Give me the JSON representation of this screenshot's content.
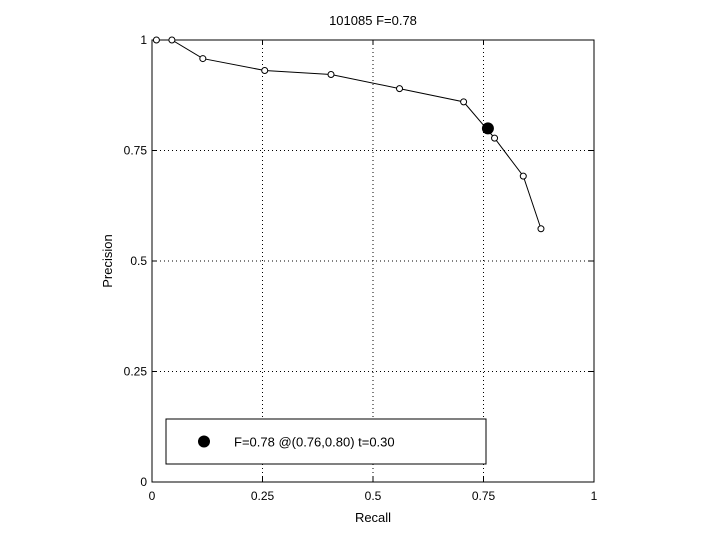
{
  "chart_data": {
    "type": "line",
    "title": "101085 F=0.78",
    "xlabel": "Recall",
    "ylabel": "Precision",
    "xlim": [
      0,
      1
    ],
    "ylim": [
      0,
      1
    ],
    "grid": true,
    "legend_placement": "bottom-left",
    "x_ticks": [
      {
        "value": 0,
        "label": "0"
      },
      {
        "value": 0.25,
        "label": "0.25"
      },
      {
        "value": 0.5,
        "label": "0.5"
      },
      {
        "value": 0.75,
        "label": "0.75"
      },
      {
        "value": 1,
        "label": "1"
      }
    ],
    "y_ticks": [
      {
        "value": 0,
        "label": "0"
      },
      {
        "value": 0.25,
        "label": "0.25"
      },
      {
        "value": 0.5,
        "label": "0.5"
      },
      {
        "value": 0.75,
        "label": "0.75"
      },
      {
        "value": 1,
        "label": "1"
      }
    ],
    "series": [
      {
        "x": [
          0.01,
          0.045,
          0.115,
          0.255,
          0.405,
          0.56,
          0.705,
          0.775,
          0.84,
          0.88
        ],
        "y": [
          1.0,
          1.0,
          0.958,
          0.931,
          0.922,
          0.89,
          0.86,
          0.778,
          0.692,
          0.573
        ],
        "color": "#000000"
      }
    ],
    "highlight_point": {
      "x": 0.76,
      "y": 0.8,
      "color": "#000000"
    },
    "legend_text": "F=0.78 @(0.76,0.80) t=0.30"
  }
}
